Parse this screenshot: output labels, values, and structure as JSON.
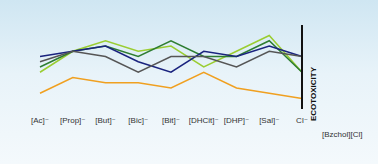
{
  "chart_data": {
    "type": "line",
    "y_label": "ECOTOXICITY",
    "annotation": "[Bzchol][Cl]",
    "categories": [
      "[Ac]⁻",
      "[Prop]⁻",
      "[But]⁻",
      "[Bic]⁻",
      "[Bit]⁻",
      "[DHCit]⁻",
      "[DHP]⁻",
      "[Sal]⁻",
      "Cl⁻"
    ],
    "series": [
      {
        "color": "#9acd32",
        "values": [
          3.5,
          5.5,
          6.5,
          5.5,
          6,
          4,
          5.5,
          7,
          3.5
        ]
      },
      {
        "color": "#2e7d32",
        "values": [
          4,
          5.5,
          6,
          5,
          6.5,
          5,
          5,
          6.5,
          3.5
        ]
      },
      {
        "color": "#1a237e",
        "values": [
          5,
          5.5,
          6,
          4.5,
          3.5,
          5.5,
          5,
          6,
          5
        ]
      },
      {
        "color": "#555555",
        "values": [
          4.5,
          5.5,
          5,
          3.5,
          5,
          5,
          4,
          5.5,
          5
        ]
      },
      {
        "color": "#f0a020",
        "values": [
          1.5,
          3,
          2.5,
          2.5,
          2,
          3.5,
          2,
          1.5,
          1
        ]
      }
    ],
    "ylim": [
      0,
      8
    ],
    "tick_labels": "x",
    "grid": false
  }
}
